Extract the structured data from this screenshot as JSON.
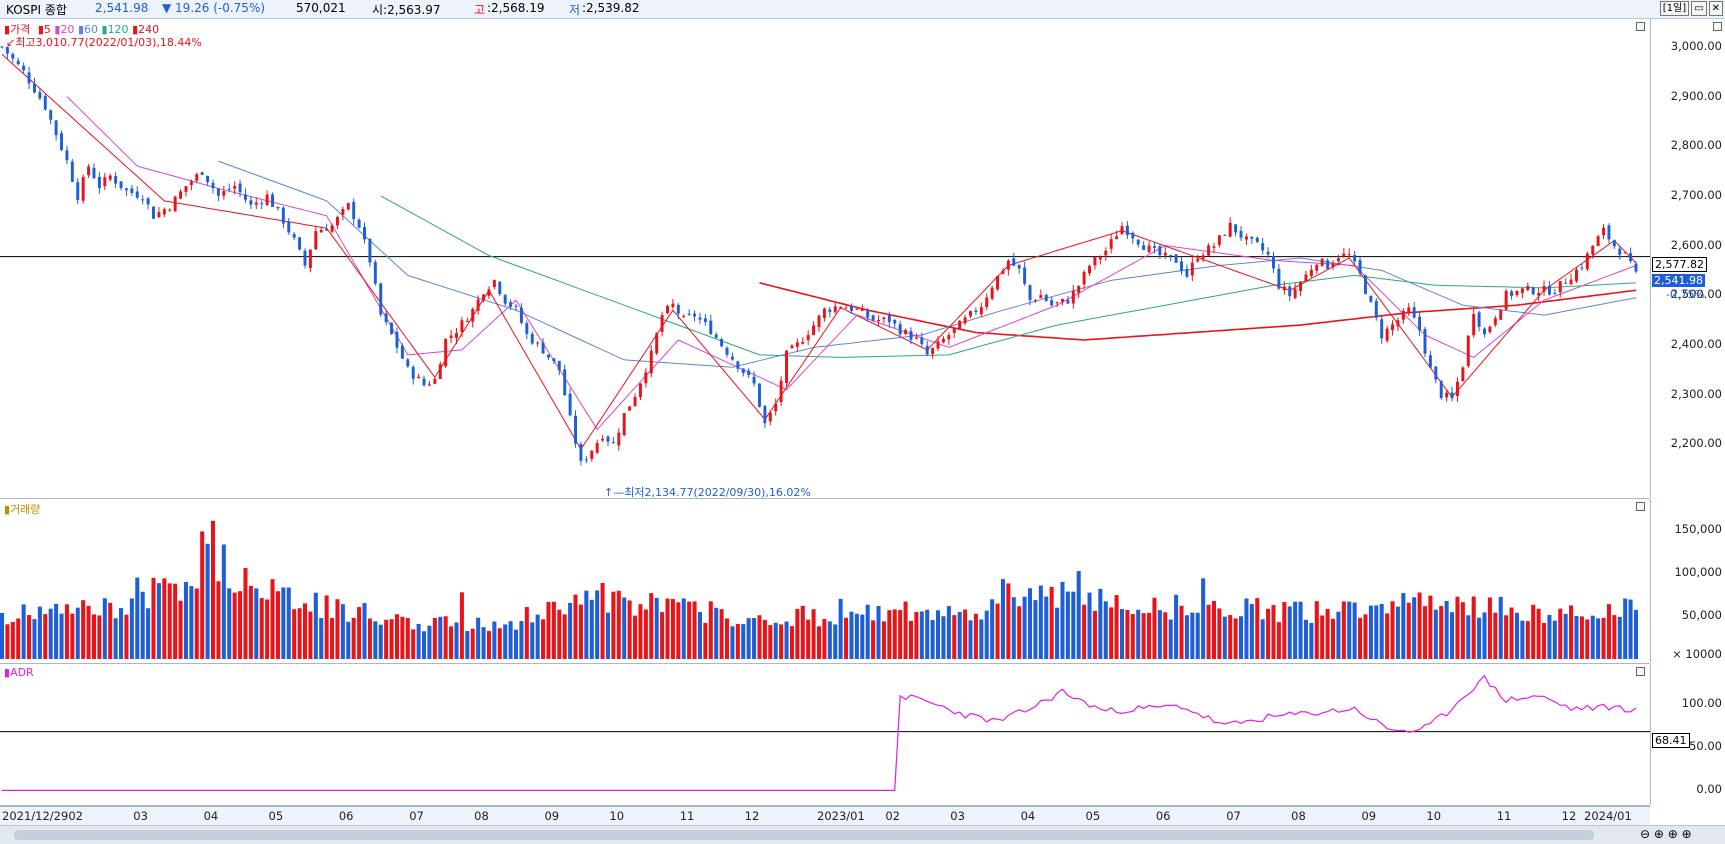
{
  "header": {
    "index_name": "KOSPI 종합",
    "price": "2,541.98",
    "change": "▼ 19.26 (-0.75%)",
    "volume": "570,021",
    "open": "시:2,563.97",
    "high_label": "고",
    "high_value": ":2,568.19",
    "low_label": "저",
    "low_value": ":2,539.82",
    "period": "[1일]"
  },
  "colors": {
    "up": "#e8141a",
    "down": "#1f5fd6",
    "ma5": "#e8141a",
    "ma20": "#d848d0",
    "ma60": "#5d86d8",
    "ma120": "#2ca882",
    "ma240": "#e8141a",
    "adr": "#e020e0"
  },
  "price_panel": {
    "legend_price": "가격",
    "legend_ma": [
      "5",
      "20",
      "60",
      "120",
      "240"
    ],
    "max_annotation": "최고3,010.77(2022/01/03),18.44%",
    "min_annotation": "최저2,134.77(2022/09/30),16.02%",
    "ref_line_value": "2,577.82",
    "last_value": "2,541.98",
    "last_change": "-0.75%"
  },
  "volume_panel": {
    "legend": "거래량",
    "unit": "× 10000"
  },
  "adr_panel": {
    "legend": "ADR",
    "ref_line_value": "68.41"
  },
  "chart_data": [
    {
      "type": "candlestick",
      "title": "KOSPI 종합",
      "ylim": [
        2110,
        3040
      ],
      "y_ticks": [
        "3,000.00",
        "2,900.00",
        "2,800.00",
        "2,700.00",
        "2,600.00",
        "2,500.00",
        "2,400.00",
        "2,300.00",
        "2,200.00"
      ],
      "x_labels": [
        "2021/12/29",
        "02",
        "03",
        "04",
        "05",
        "06",
        "07",
        "08",
        "09",
        "10",
        "11",
        "12",
        "2023/01",
        "02",
        "03",
        "04",
        "05",
        "06",
        "07",
        "08",
        "09",
        "10",
        "11",
        "12",
        "2024/01"
      ],
      "close_path": [
        [
          0,
          3000
        ],
        [
          4,
          2950
        ],
        [
          8,
          2880
        ],
        [
          12,
          2770
        ],
        [
          14,
          2700
        ],
        [
          16,
          2760
        ],
        [
          18,
          2720
        ],
        [
          20,
          2740
        ],
        [
          23,
          2710
        ],
        [
          26,
          2700
        ],
        [
          28,
          2660
        ],
        [
          31,
          2680
        ],
        [
          34,
          2720
        ],
        [
          37,
          2750
        ],
        [
          40,
          2700
        ],
        [
          43,
          2720
        ],
        [
          46,
          2680
        ],
        [
          49,
          2700
        ],
        [
          52,
          2650
        ],
        [
          54,
          2610
        ],
        [
          56,
          2560
        ],
        [
          58,
          2630
        ],
        [
          61,
          2640
        ],
        [
          64,
          2680
        ],
        [
          66,
          2640
        ],
        [
          68,
          2570
        ],
        [
          70,
          2460
        ],
        [
          72,
          2420
        ],
        [
          75,
          2350
        ],
        [
          78,
          2320
        ],
        [
          80,
          2330
        ],
        [
          82,
          2410
        ],
        [
          84,
          2430
        ],
        [
          87,
          2470
        ],
        [
          89,
          2510
        ],
        [
          91,
          2530
        ],
        [
          93,
          2490
        ],
        [
          95,
          2470
        ],
        [
          97,
          2420
        ],
        [
          100,
          2390
        ],
        [
          103,
          2350
        ],
        [
          105,
          2250
        ],
        [
          107,
          2160
        ],
        [
          109,
          2190
        ],
        [
          111,
          2220
        ],
        [
          113,
          2200
        ],
        [
          115,
          2260
        ],
        [
          117,
          2300
        ],
        [
          120,
          2380
        ],
        [
          122,
          2460
        ],
        [
          124,
          2480
        ],
        [
          126,
          2450
        ],
        [
          128,
          2460
        ],
        [
          131,
          2430
        ],
        [
          133,
          2400
        ],
        [
          136,
          2360
        ],
        [
          139,
          2320
        ],
        [
          141,
          2240
        ],
        [
          143,
          2280
        ],
        [
          145,
          2380
        ],
        [
          147,
          2400
        ],
        [
          150,
          2440
        ],
        [
          152,
          2470
        ],
        [
          155,
          2480
        ],
        [
          158,
          2470
        ],
        [
          161,
          2450
        ],
        [
          164,
          2450
        ],
        [
          166,
          2430
        ],
        [
          169,
          2410
        ],
        [
          171,
          2380
        ],
        [
          173,
          2400
        ],
        [
          175,
          2420
        ],
        [
          178,
          2450
        ],
        [
          181,
          2480
        ],
        [
          183,
          2520
        ],
        [
          186,
          2570
        ],
        [
          188,
          2550
        ],
        [
          190,
          2490
        ],
        [
          192,
          2500
        ],
        [
          194,
          2480
        ],
        [
          197,
          2490
        ],
        [
          199,
          2520
        ],
        [
          201,
          2560
        ],
        [
          204,
          2590
        ],
        [
          207,
          2640
        ],
        [
          209,
          2620
        ],
        [
          211,
          2600
        ],
        [
          214,
          2580
        ],
        [
          217,
          2570
        ],
        [
          219,
          2540
        ],
        [
          221,
          2580
        ],
        [
          224,
          2600
        ],
        [
          227,
          2640
        ],
        [
          230,
          2610
        ],
        [
          232,
          2600
        ],
        [
          234,
          2580
        ],
        [
          236,
          2520
        ],
        [
          238,
          2500
        ],
        [
          241,
          2540
        ],
        [
          243,
          2570
        ],
        [
          245,
          2560
        ],
        [
          247,
          2580
        ],
        [
          249,
          2580
        ],
        [
          251,
          2540
        ],
        [
          253,
          2480
        ],
        [
          255,
          2420
        ],
        [
          257,
          2440
        ],
        [
          260,
          2470
        ],
        [
          262,
          2430
        ],
        [
          264,
          2350
        ],
        [
          266,
          2300
        ],
        [
          268,
          2290
        ],
        [
          270,
          2360
        ],
        [
          272,
          2470
        ],
        [
          274,
          2420
        ],
        [
          276,
          2460
        ],
        [
          278,
          2500
        ],
        [
          281,
          2510
        ],
        [
          283,
          2510
        ],
        [
          285,
          2510
        ],
        [
          287,
          2510
        ],
        [
          290,
          2540
        ],
        [
          292,
          2560
        ],
        [
          294,
          2600
        ],
        [
          296,
          2630
        ],
        [
          298,
          2600
        ],
        [
          300,
          2580
        ],
        [
          302,
          2540
        ]
      ],
      "ma5_path": [
        [
          0,
          2985
        ],
        [
          30,
          2690
        ],
        [
          60,
          2635
        ],
        [
          80,
          2335
        ],
        [
          90,
          2510
        ],
        [
          107,
          2190
        ],
        [
          124,
          2470
        ],
        [
          141,
          2250
        ],
        [
          155,
          2475
        ],
        [
          171,
          2390
        ],
        [
          186,
          2560
        ],
        [
          207,
          2630
        ],
        [
          238,
          2510
        ],
        [
          249,
          2575
        ],
        [
          268,
          2295
        ],
        [
          285,
          2510
        ],
        [
          298,
          2610
        ],
        [
          302,
          2565
        ]
      ],
      "ma20_path": [
        [
          12,
          2900
        ],
        [
          25,
          2760
        ],
        [
          40,
          2715
        ],
        [
          60,
          2660
        ],
        [
          75,
          2380
        ],
        [
          85,
          2390
        ],
        [
          95,
          2490
        ],
        [
          110,
          2230
        ],
        [
          125,
          2410
        ],
        [
          145,
          2310
        ],
        [
          158,
          2460
        ],
        [
          175,
          2395
        ],
        [
          195,
          2480
        ],
        [
          215,
          2600
        ],
        [
          235,
          2570
        ],
        [
          250,
          2560
        ],
        [
          263,
          2420
        ],
        [
          272,
          2375
        ],
        [
          285,
          2490
        ],
        [
          302,
          2560
        ]
      ],
      "ma60_path": [
        [
          40,
          2770
        ],
        [
          60,
          2690
        ],
        [
          75,
          2540
        ],
        [
          95,
          2470
        ],
        [
          115,
          2370
        ],
        [
          135,
          2355
        ],
        [
          150,
          2395
        ],
        [
          170,
          2420
        ],
        [
          185,
          2470
        ],
        [
          205,
          2530
        ],
        [
          225,
          2560
        ],
        [
          240,
          2575
        ],
        [
          255,
          2550
        ],
        [
          270,
          2480
        ],
        [
          285,
          2460
        ],
        [
          302,
          2495
        ]
      ],
      "ma120_path": [
        [
          70,
          2700
        ],
        [
          90,
          2580
        ],
        [
          115,
          2480
        ],
        [
          140,
          2380
        ],
        [
          155,
          2375
        ],
        [
          175,
          2380
        ],
        [
          195,
          2440
        ],
        [
          215,
          2480
        ],
        [
          235,
          2520
        ],
        [
          250,
          2540
        ],
        [
          265,
          2520
        ],
        [
          285,
          2515
        ],
        [
          302,
          2525
        ]
      ],
      "ma240_path": [
        [
          140,
          2525
        ],
        [
          160,
          2470
        ],
        [
          180,
          2425
        ],
        [
          200,
          2410
        ],
        [
          220,
          2425
        ],
        [
          240,
          2440
        ],
        [
          260,
          2465
        ],
        [
          280,
          2480
        ],
        [
          302,
          2510
        ]
      ],
      "reference_line": 2577.82
    },
    {
      "type": "bar",
      "title": "거래량",
      "ylim": [
        0,
        175000
      ],
      "y_ticks": [
        "150,000",
        "100,000",
        "50,000"
      ],
      "volume_path": [
        [
          0,
          50000
        ],
        [
          20,
          60000
        ],
        [
          35,
          90000
        ],
        [
          38,
          140000
        ],
        [
          42,
          100000
        ],
        [
          50,
          80000
        ],
        [
          60,
          60000
        ],
        [
          70,
          50000
        ],
        [
          80,
          40000
        ],
        [
          95,
          45000
        ],
        [
          105,
          70000
        ],
        [
          115,
          65000
        ],
        [
          125,
          60000
        ],
        [
          140,
          45000
        ],
        [
          150,
          50000
        ],
        [
          165,
          55000
        ],
        [
          180,
          50000
        ],
        [
          185,
          80000
        ],
        [
          195,
          75000
        ],
        [
          205,
          65000
        ],
        [
          220,
          60000
        ],
        [
          240,
          55000
        ],
        [
          255,
          55000
        ],
        [
          265,
          75000
        ],
        [
          275,
          60000
        ],
        [
          290,
          50000
        ],
        [
          302,
          60000
        ]
      ]
    },
    {
      "type": "line",
      "title": "ADR",
      "ylim": [
        -10,
        140
      ],
      "y_ticks": [
        "100.00",
        "50.00",
        "0.00"
      ],
      "adr_path": [
        [
          0,
          0
        ],
        [
          165,
          0
        ],
        [
          166,
          110
        ],
        [
          170,
          105
        ],
        [
          178,
          88
        ],
        [
          184,
          80
        ],
        [
          190,
          95
        ],
        [
          196,
          115
        ],
        [
          199,
          105
        ],
        [
          204,
          92
        ],
        [
          210,
          95
        ],
        [
          218,
          98
        ],
        [
          226,
          75
        ],
        [
          234,
          85
        ],
        [
          242,
          90
        ],
        [
          250,
          95
        ],
        [
          256,
          72
        ],
        [
          262,
          68
        ],
        [
          267,
          90
        ],
        [
          271,
          115
        ],
        [
          274,
          130
        ],
        [
          278,
          105
        ],
        [
          284,
          110
        ],
        [
          290,
          95
        ],
        [
          298,
          97
        ],
        [
          302,
          93
        ]
      ],
      "reference_line": 68.41
    }
  ]
}
